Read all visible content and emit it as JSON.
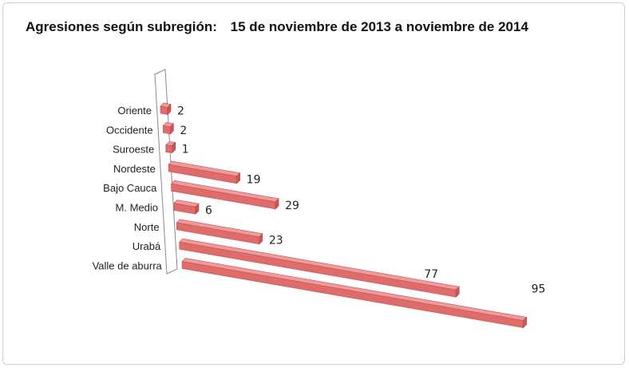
{
  "chart_data": {
    "type": "bar",
    "title": "Agresiones según subregión:",
    "subtitle": "15 de noviembre de 2013 a noviembre de 2014",
    "categories": [
      "Oriente",
      "Occidente",
      "Suroeste",
      "Nordeste",
      "Bajo Cauca",
      "M. Medio",
      "Norte",
      "Urabá",
      "Valle de aburra"
    ],
    "values": [
      2,
      2,
      1,
      19,
      29,
      6,
      23,
      77,
      95
    ],
    "value_labels": [
      "2",
      "2",
      "1",
      "19",
      "29",
      "6",
      "23",
      "77",
      "95"
    ],
    "orientation": "horizontal-3d",
    "bar_color": "#e06b6b",
    "legend": "none",
    "grid": false
  }
}
